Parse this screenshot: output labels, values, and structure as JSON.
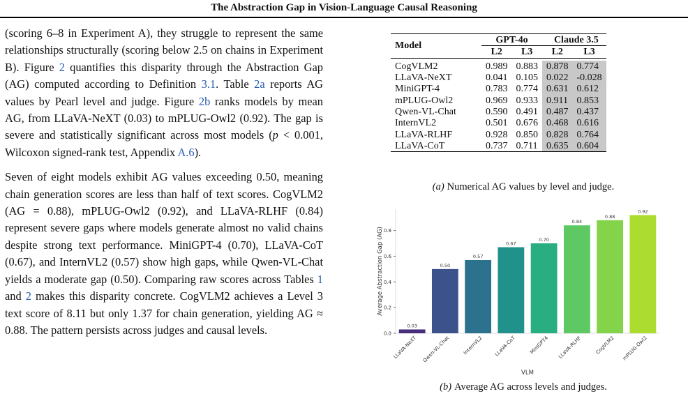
{
  "header": {
    "title": "The Abstraction Gap in Vision-Language Causal Reasoning"
  },
  "body": {
    "paragraphs": [
      [
        {
          "text": "(scoring 6–8 in Experiment A), they struggle to represent the same relationships structurally (scoring below 2.5 on chains in Experiment B). Figure "
        },
        {
          "link": "2"
        },
        {
          "text": " quantifies this disparity through the Abstraction Gap (AG) computed according to Definition "
        },
        {
          "link": "3.1"
        },
        {
          "text": ". Table "
        },
        {
          "link": "2a"
        },
        {
          "text": " reports AG values by Pearl level and judge. Figure "
        },
        {
          "link": "2b"
        },
        {
          "text": " ranks models by mean AG, from LLaVA-NeXT (0.03) to mPLUG-Owl2 (0.92). The gap is severe and statistically significant across most models ("
        },
        {
          "em": "p"
        },
        {
          "text": " < 0.001, Wilcoxon signed-rank test, Appendix "
        },
        {
          "link": "A.6"
        },
        {
          "text": ")."
        }
      ],
      [
        {
          "text": "Seven of eight models exhibit AG values exceeding 0.50, meaning chain generation scores are less than half of text scores. CogVLM2 (AG = 0.88), mPLUG-Owl2 (0.92), and LLaVA-RLHF (0.84) represent severe gaps where models generate almost no valid chains despite strong text performance. MiniGPT-4 (0.70), LLaVA-CoT (0.67), and InternVL2 (0.57) show high gaps, while Qwen-VL-Chat yields a moderate gap (0.50). Comparing raw scores across Tables "
        },
        {
          "link": "1"
        },
        {
          "text": " and "
        },
        {
          "link": "2"
        },
        {
          "text": " makes this disparity concrete. CogVLM2 achieves a Level 3 text score of 8.11 but only 1.37 for chain generation, yielding AG ≈ 0.88. The pattern persists across judges and causal levels."
        }
      ]
    ]
  },
  "table": {
    "model_header": "Model",
    "groups": [
      "GPT-4o",
      "Claude 3.5"
    ],
    "levels": [
      "L2",
      "L3",
      "L2",
      "L3"
    ],
    "rows": [
      [
        "CogVLM2",
        "0.989",
        "0.883",
        "0.878",
        "0.774"
      ],
      [
        "LLaVA-NeXT",
        "0.041",
        "0.105",
        "0.022",
        "-0.028"
      ],
      [
        "MiniGPT-4",
        "0.783",
        "0.774",
        "0.631",
        "0.612"
      ],
      [
        "mPLUG-Owl2",
        "0.969",
        "0.933",
        "0.911",
        "0.853"
      ],
      [
        "Qwen-VL-Chat",
        "0.590",
        "0.491",
        "0.487",
        "0.437"
      ],
      [
        "InternVL2",
        "0.501",
        "0.676",
        "0.468",
        "0.616"
      ],
      [
        "LLaVA-RLHF",
        "0.928",
        "0.850",
        "0.828",
        "0.764"
      ],
      [
        "LLaVA-CoT",
        "0.737",
        "0.711",
        "0.635",
        "0.604"
      ]
    ],
    "caption": {
      "label": "(a)",
      "text": "Numerical AG values by level and judge."
    }
  },
  "chart_data": {
    "type": "bar",
    "categories": [
      "LLaVA-NeXT",
      "Qwen-VL-Chat",
      "InternVL2",
      "LLaVA-CoT",
      "MiniGPT4",
      "LLaVA-RLHF",
      "CogVLM2",
      "mPLUG-Owl2"
    ],
    "values": [
      0.03,
      0.5,
      0.57,
      0.67,
      0.7,
      0.84,
      0.88,
      0.92
    ],
    "value_labels": [
      "0.03",
      "0.50",
      "0.57",
      "0.67",
      "0.70",
      "0.84",
      "0.88",
      "0.92"
    ],
    "colors": [
      "#472d7b",
      "#3b528b",
      "#2c728e",
      "#21918c",
      "#28ae80",
      "#5ec962",
      "#84d44b",
      "#addc30"
    ],
    "xlabel": "VLM",
    "ylabel": "Average Abstraction Gap (AG)",
    "ylim": [
      0,
      0.966
    ],
    "yticks": [
      {
        "value": 0,
        "label": "0.0"
      },
      0.2,
      0.4,
      0.6,
      0.8
    ],
    "caption": {
      "label": "(b)",
      "text": "Average AG across levels and judges."
    }
  }
}
